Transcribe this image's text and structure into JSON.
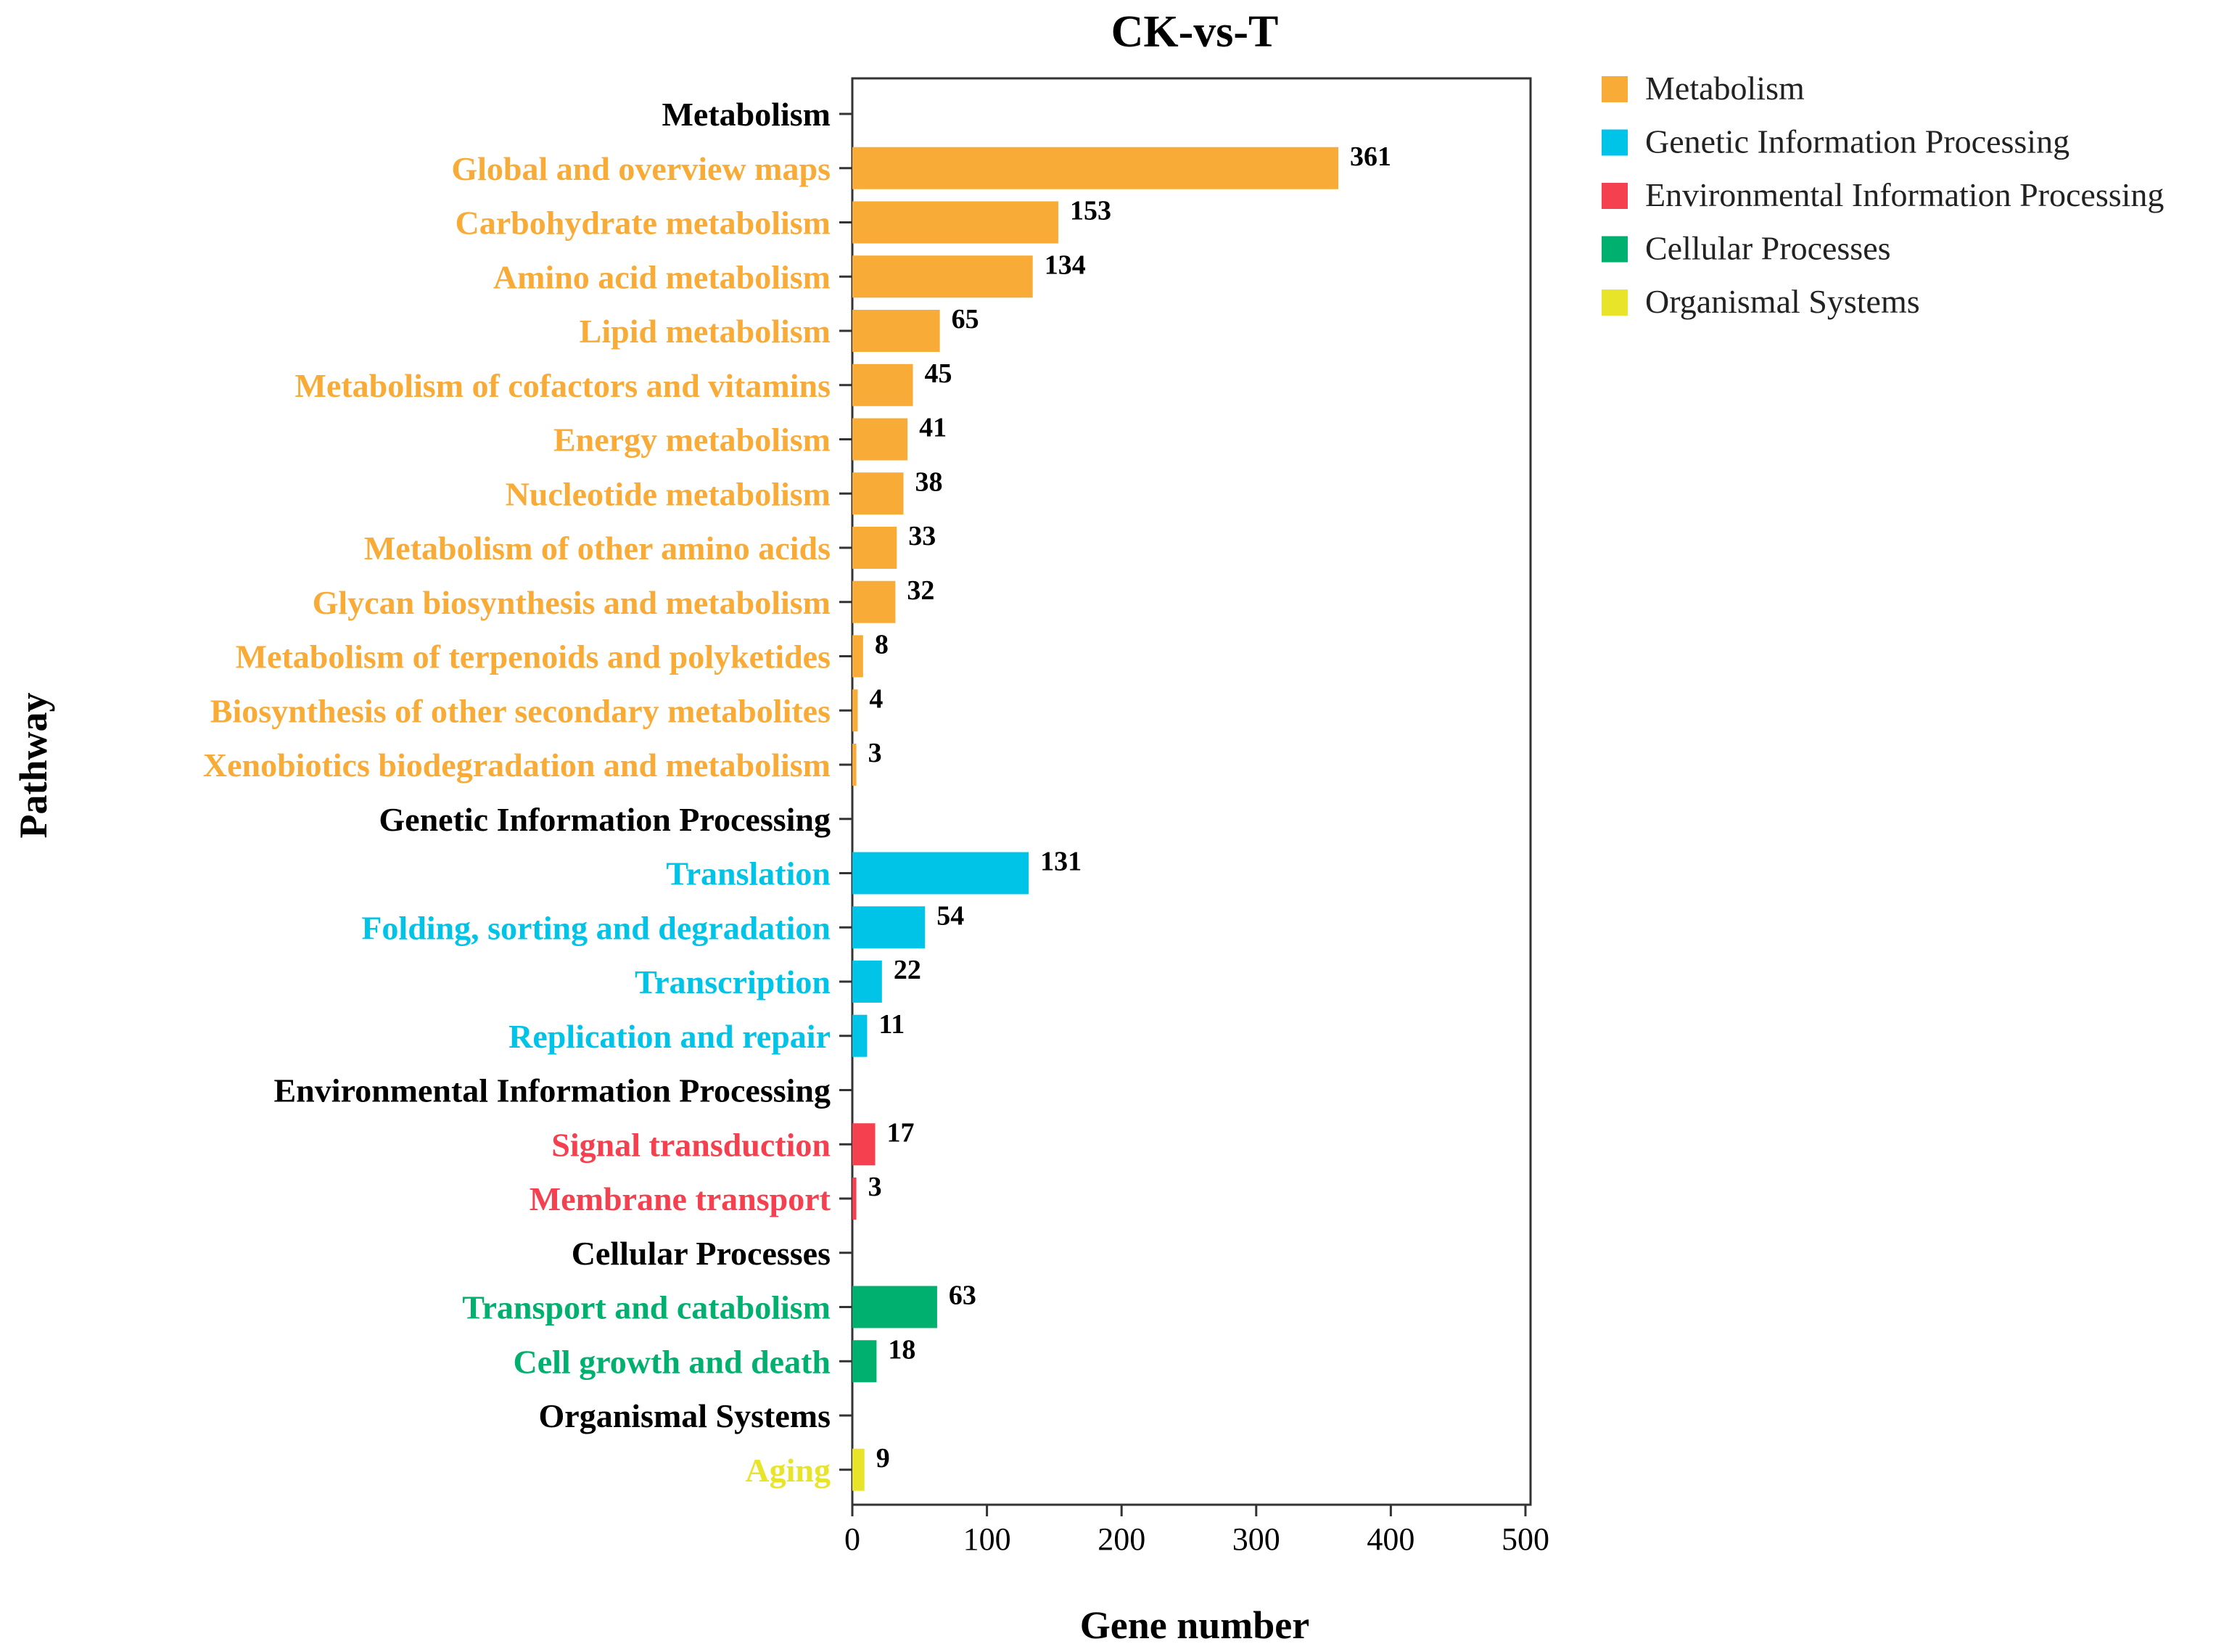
{
  "chart_data": {
    "type": "bar",
    "orientation": "horizontal",
    "title": "CK-vs-T",
    "xlabel": "Gene number",
    "ylabel": "Pathway",
    "xlim": [
      0,
      520
    ],
    "xticks": [
      0,
      100,
      200,
      300,
      400,
      500
    ],
    "grid": false,
    "legend_position": "top-right",
    "groups": [
      {
        "name": "Metabolism",
        "color": "#F9AB38",
        "items": [
          {
            "label": "Global and overview maps",
            "value": 361
          },
          {
            "label": "Carbohydrate metabolism",
            "value": 153
          },
          {
            "label": "Amino acid metabolism",
            "value": 134
          },
          {
            "label": "Lipid metabolism",
            "value": 65
          },
          {
            "label": "Metabolism of cofactors and vitamins",
            "value": 45
          },
          {
            "label": "Energy metabolism",
            "value": 41
          },
          {
            "label": "Nucleotide metabolism",
            "value": 38
          },
          {
            "label": "Metabolism of other amino acids",
            "value": 33
          },
          {
            "label": "Glycan biosynthesis and metabolism",
            "value": 32
          },
          {
            "label": "Metabolism of terpenoids and polyketides",
            "value": 8
          },
          {
            "label": "Biosynthesis of other secondary metabolites",
            "value": 4
          },
          {
            "label": "Xenobiotics biodegradation and metabolism",
            "value": 3
          }
        ]
      },
      {
        "name": "Genetic Information Processing",
        "color": "#00C3E8",
        "items": [
          {
            "label": "Translation",
            "value": 131
          },
          {
            "label": "Folding, sorting and degradation",
            "value": 54
          },
          {
            "label": "Transcription",
            "value": 22
          },
          {
            "label": "Replication and repair",
            "value": 11
          }
        ]
      },
      {
        "name": "Environmental Information Processing",
        "color": "#F5404F",
        "items": [
          {
            "label": "Signal transduction",
            "value": 17
          },
          {
            "label": "Membrane transport",
            "value": 3
          }
        ]
      },
      {
        "name": "Cellular Processes",
        "color": "#00B06E",
        "items": [
          {
            "label": "Transport and catabolism",
            "value": 63
          },
          {
            "label": "Cell growth and death",
            "value": 18
          }
        ]
      },
      {
        "name": "Organismal Systems",
        "color": "#E8E42A",
        "items": [
          {
            "label": "Aging",
            "value": 9
          }
        ]
      }
    ]
  }
}
